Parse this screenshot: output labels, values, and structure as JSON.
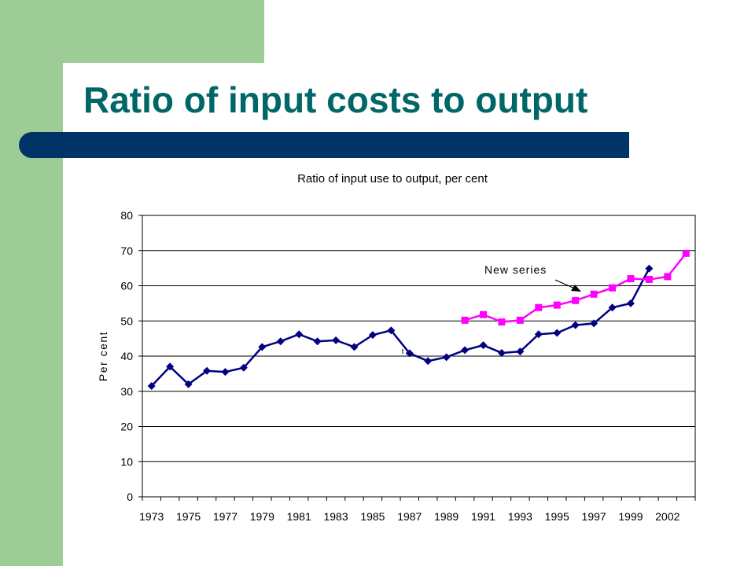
{
  "slide": {
    "title": "Ratio of input costs to output",
    "colors": {
      "sidebar": "#9dcc97",
      "title_bar": "#003366",
      "title_text": "#006666"
    }
  },
  "chart_data": {
    "type": "line",
    "title": "Ratio of input use to output, per cent",
    "xlabel": "",
    "ylabel": "Per cent",
    "ylim": [
      0,
      80
    ],
    "yticks": [
      0,
      10,
      20,
      30,
      40,
      50,
      60,
      70,
      80
    ],
    "xtick_labels": [
      "1973",
      "1975",
      "1977",
      "1979",
      "1981",
      "1983",
      "1985",
      "1987",
      "1989",
      "1991",
      "1993",
      "1995",
      "1997",
      "1999",
      "2002"
    ],
    "grid": "horizontal",
    "legend": "none",
    "annotation": "New series",
    "series": [
      {
        "color": "#000080",
        "marker": "diamond",
        "x": [
          1973,
          1974,
          1975,
          1976,
          1977,
          1978,
          1979,
          1980,
          1981,
          1982,
          1983,
          1984,
          1985,
          1986,
          1987,
          1988,
          1989,
          1990,
          1991,
          1992,
          1993,
          1994,
          1995,
          1996,
          1997,
          1998,
          1999,
          2000
        ],
        "values": [
          31.5,
          37,
          32,
          35.8,
          35.5,
          36.7,
          42.6,
          44.2,
          46.2,
          44.2,
          44.5,
          42.6,
          46,
          47.3,
          40.8,
          38.6,
          39.7,
          41.7,
          43.1,
          40.9,
          41.3,
          46.2,
          46.6,
          48.8,
          49.3,
          53.8,
          55,
          64.9
        ]
      },
      {
        "color": "#ff00ff",
        "marker": "square",
        "x": [
          1990,
          1991,
          1992,
          1993,
          1994,
          1995,
          1996,
          1997,
          1998,
          1999,
          2000,
          2001,
          2002
        ],
        "values": [
          50.2,
          51.8,
          49.7,
          50.2,
          53.8,
          54.5,
          55.8,
          57.6,
          59.4,
          62,
          61.8,
          62.6,
          69.2
        ]
      }
    ]
  }
}
